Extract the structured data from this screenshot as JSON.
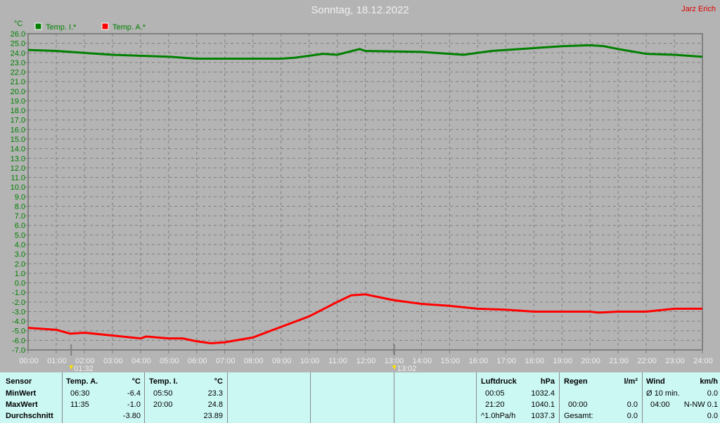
{
  "header": {
    "title": "Sonntag, 18.12.2022",
    "author": "Jarz Erich"
  },
  "markers": [
    {
      "time": "01:32"
    },
    {
      "time": "13:02"
    }
  ],
  "chart_data": {
    "type": "line",
    "ylabel": "°C",
    "ylim": [
      -7.0,
      26.0
    ],
    "xlim": [
      0,
      24
    ],
    "grid": true,
    "legend": "top-left",
    "x_ticks": [
      "00:00",
      "01:00",
      "02:00",
      "03:00",
      "04:00",
      "05:00",
      "06:00",
      "07:00",
      "08:00",
      "09:00",
      "10:00",
      "11:00",
      "12:00",
      "13:00",
      "14:00",
      "15:00",
      "16:00",
      "17:00",
      "18:00",
      "19:00",
      "20:00",
      "21:00",
      "22:00",
      "23:00",
      "24:00"
    ],
    "y_ticks": [
      "26.0",
      "25.0",
      "24.0",
      "23.0",
      "22.0",
      "21.0",
      "20.0",
      "19.0",
      "18.0",
      "17.0",
      "16.0",
      "15.0",
      "14.0",
      "13.0",
      "12.0",
      "11.0",
      "10.0",
      "9.0",
      "8.0",
      "7.0",
      "6.0",
      "5.0",
      "4.0",
      "3.0",
      "2.0",
      "1.0",
      "0.0",
      "-1.0",
      "-2.0",
      "-3.0",
      "-4.0",
      "-5.0",
      "-6.0",
      "-7.0"
    ],
    "series": [
      {
        "name": "Temp. I.*",
        "color": "#008000",
        "x": [
          0,
          1,
          2,
          3,
          5,
          6,
          9,
          9.5,
          10.5,
          11,
          11.8,
          12,
          14,
          15,
          15.5,
          16.5,
          17,
          18,
          19,
          20,
          20.5,
          21,
          22,
          23,
          24
        ],
        "y": [
          24.3,
          24.2,
          24.0,
          23.8,
          23.6,
          23.4,
          23.4,
          23.5,
          23.9,
          23.8,
          24.4,
          24.2,
          24.1,
          23.9,
          23.8,
          24.2,
          24.3,
          24.5,
          24.7,
          24.8,
          24.7,
          24.4,
          23.9,
          23.8,
          23.6
        ]
      },
      {
        "name": "Temp. A.*",
        "color": "#ff0000",
        "x": [
          0,
          1,
          1.5,
          2,
          3,
          4,
          4.2,
          5,
          5.5,
          6,
          6.5,
          7,
          8,
          9,
          10,
          11,
          11.5,
          12,
          13,
          14,
          15,
          16,
          17,
          18,
          19,
          20,
          20.3,
          21,
          22,
          23,
          24
        ],
        "y": [
          -4.7,
          -4.9,
          -5.3,
          -5.2,
          -5.5,
          -5.8,
          -5.6,
          -5.8,
          -5.8,
          -6.1,
          -6.3,
          -6.2,
          -5.7,
          -4.6,
          -3.5,
          -2.0,
          -1.3,
          -1.2,
          -1.8,
          -2.2,
          -2.4,
          -2.7,
          -2.8,
          -3.0,
          -3.0,
          -3.0,
          -3.1,
          -3.0,
          -3.0,
          -2.7,
          -2.7
        ]
      }
    ]
  },
  "table": {
    "temp_a": {
      "header": "Sensor",
      "rows": [
        "MinWert",
        "MaxWert",
        "Durchschnitt"
      ],
      "title": "Temp. A.",
      "unit": "°C",
      "times": [
        "06:30",
        "11:35",
        ""
      ],
      "values": [
        "-6.4",
        "-1.0",
        "-3.80"
      ]
    },
    "temp_i": {
      "title": "Temp. I.",
      "unit": "°C",
      "times": [
        "05:50",
        "20:00",
        ""
      ],
      "values": [
        "23.3",
        "24.8",
        "23.89"
      ]
    },
    "pressure": {
      "title": "Luftdruck",
      "unit": "hPa",
      "times": [
        "00:05",
        "21:20",
        "^1.0hPa/h"
      ],
      "values": [
        "1032.4",
        "1040.1",
        "1037.3"
      ]
    },
    "rain": {
      "title": "Regen",
      "unit": "l/m²",
      "times": [
        "",
        "00:00",
        "Gesamt:"
      ],
      "values": [
        "",
        "0.0",
        "0.0"
      ]
    },
    "wind": {
      "title": "Wind",
      "unit": "km/h",
      "times": [
        "Ø 10 min.",
        "04:00",
        ""
      ],
      "values": [
        "0.0",
        "N-NW 0.1",
        "0.0"
      ]
    }
  }
}
